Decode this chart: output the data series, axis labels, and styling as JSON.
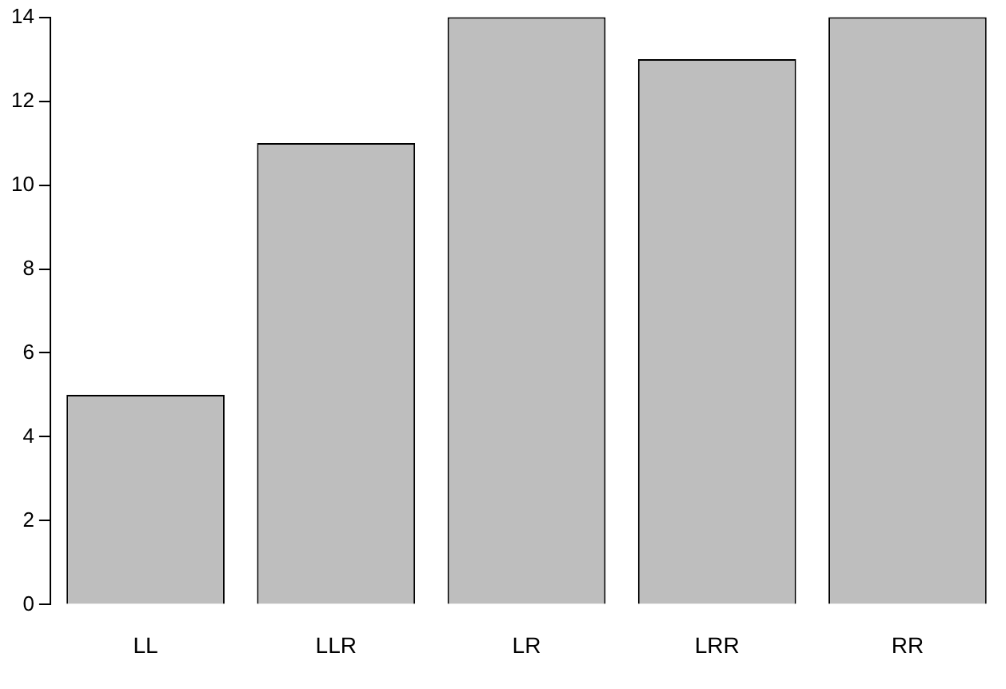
{
  "chart_data": {
    "type": "bar",
    "categories": [
      "LL",
      "LLR",
      "LR",
      "LRR",
      "RR"
    ],
    "values": [
      5,
      11,
      14,
      13,
      14
    ],
    "color": "#bebebe",
    "ylim": [
      0,
      14
    ],
    "yticks": [
      0,
      2,
      4,
      6,
      8,
      10,
      12,
      14
    ],
    "grid": false,
    "legend": false
  }
}
